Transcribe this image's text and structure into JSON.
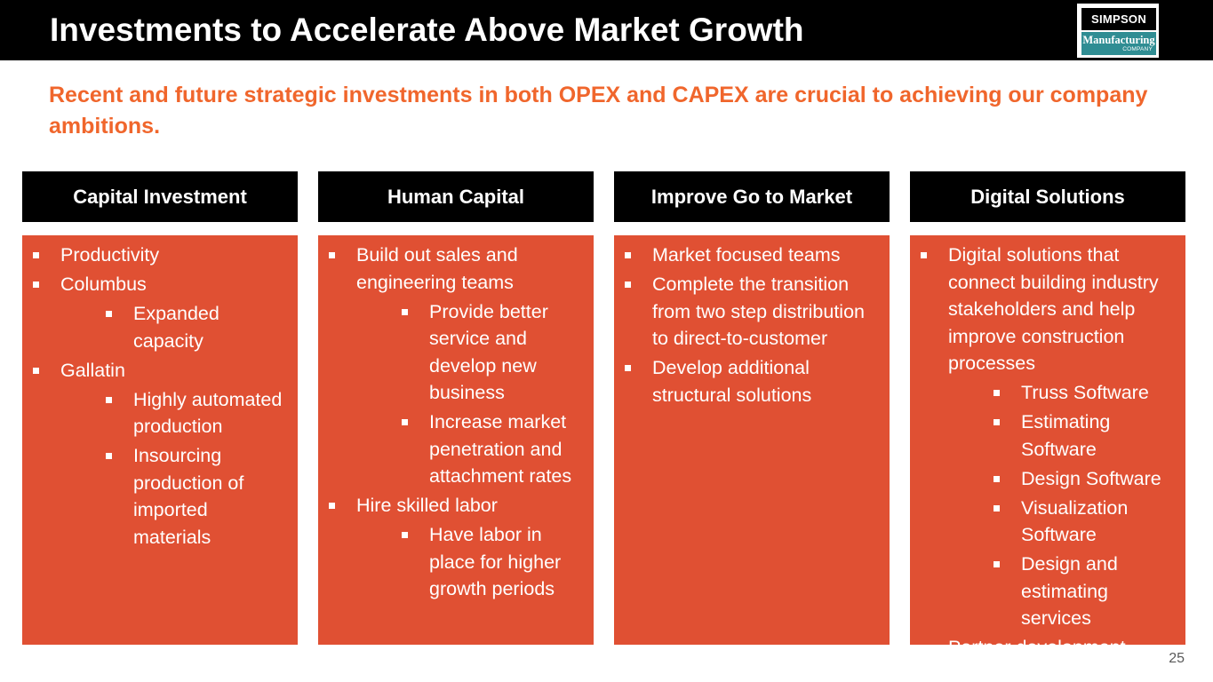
{
  "header": {
    "title": "Investments to Accelerate Above Market Growth",
    "logo": {
      "top_text": "SIMPSON",
      "middle_text": "Manufacturing",
      "bottom_text": "COMPANY"
    }
  },
  "subtitle": "Recent and future strategic investments in both OPEX and CAPEX are crucial to achieving our company ambitions.",
  "columns": [
    {
      "title": "Capital Investment",
      "items": [
        {
          "text": "Productivity",
          "sub": []
        },
        {
          "text": "Columbus",
          "sub": [
            "Expanded capacity"
          ]
        },
        {
          "text": "Gallatin",
          "sub": [
            "Highly automated production",
            "Insourcing production of imported materials"
          ]
        }
      ]
    },
    {
      "title": "Human Capital",
      "items": [
        {
          "text": "Build out sales and engineering teams",
          "sub": [
            "Provide better service and develop new business",
            "Increase market penetration and attachment rates"
          ]
        },
        {
          "text": "Hire skilled labor",
          "sub": [
            "Have labor in place for higher growth periods"
          ]
        }
      ]
    },
    {
      "title": "Improve Go to Market",
      "items": [
        {
          "text": "Market focused teams",
          "sub": []
        },
        {
          "text": "Complete the transition from two step distribution to direct-to-customer",
          "sub": []
        },
        {
          "text": "Develop additional structural solutions",
          "sub": []
        }
      ]
    },
    {
      "title": "Digital Solutions",
      "items": [
        {
          "text": "Digital solutions that connect building industry stakeholders and help improve construction processes",
          "sub": [
            "Truss Software",
            "Estimating Software",
            "Design Software",
            "Visualization Software",
            "Design and estimating services"
          ]
        },
        {
          "text": "Partner development",
          "sub": []
        }
      ]
    }
  ],
  "page_number": "25",
  "colors": {
    "accent_orange": "#f0662c",
    "column_body": "#e05033",
    "header_black": "#000000",
    "logo_teal": "#2f8d93"
  }
}
